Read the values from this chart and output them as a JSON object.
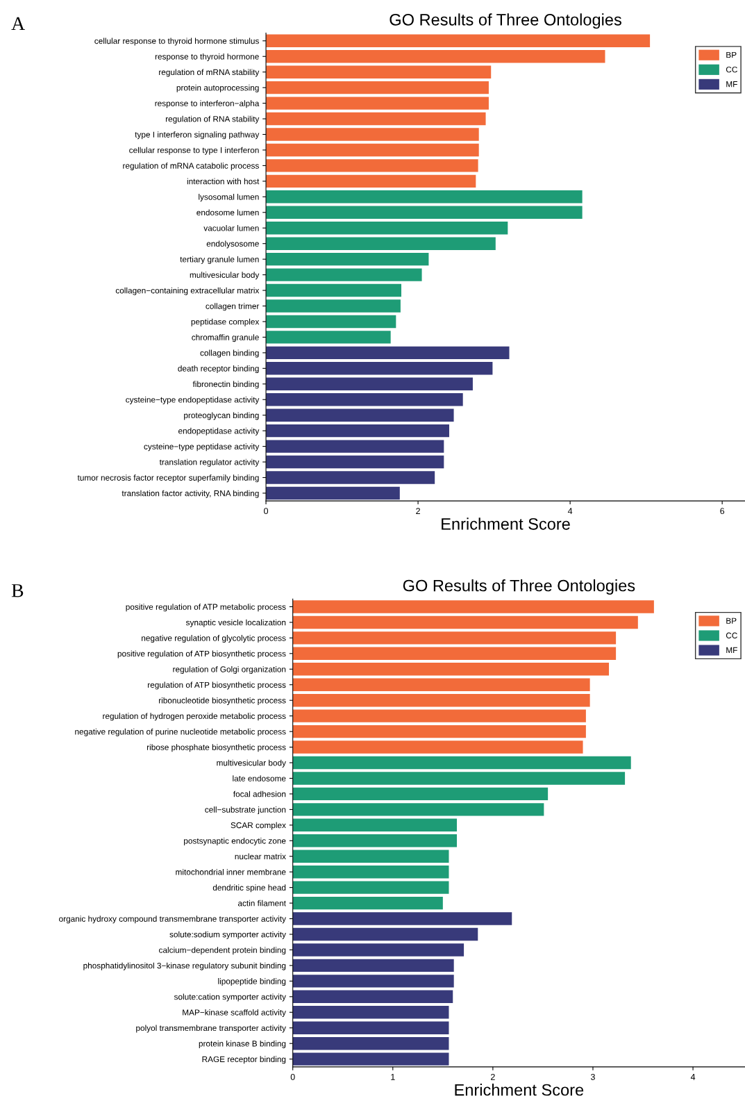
{
  "chart_data": [
    {
      "type": "bar",
      "orientation": "horizontal",
      "title": "GO Results of Three Ontologies",
      "xlabel": "Enrichment Score",
      "annotations": [
        "A"
      ],
      "legend": "top right",
      "grid": false,
      "categories": [
        "cellular response to thyroid hormone stimulus",
        "response to thyroid hormone",
        "regulation of mRNA stability",
        "protein autoprocessing",
        "response to interferon−alpha",
        "regulation of RNA stability",
        "type I interferon signaling pathway",
        "cellular response to type I interferon",
        "regulation of mRNA catabolic process",
        "interaction with host",
        "lysosomal lumen",
        "endosome lumen",
        "vacuolar lumen",
        "endolysosome",
        "tertiary granule lumen",
        "multivesicular body",
        "collagen−containing extracellular matrix",
        "collagen trimer",
        "peptidase complex",
        "chromaffin granule",
        "collagen binding",
        "death receptor binding",
        "fibronectin binding",
        "cysteine−type endopeptidase activity",
        "proteoglycan binding",
        "endopeptidase activity",
        "cysteine−type peptidase activity",
        "translation regulator activity",
        "tumor necrosis factor receptor superfamily binding",
        "translation factor activity, RNA binding"
      ],
      "series": [
        {
          "name": "BP",
          "color": "#f26b3a",
          "values": [
            5.05,
            4.46,
            2.96,
            2.93,
            2.93,
            2.89,
            2.8,
            2.8,
            2.79,
            2.76,
            null,
            null,
            null,
            null,
            null,
            null,
            null,
            null,
            null,
            null,
            null,
            null,
            null,
            null,
            null,
            null,
            null,
            null,
            null,
            null
          ]
        },
        {
          "name": "CC",
          "color": "#1e9c76",
          "values": [
            null,
            null,
            null,
            null,
            null,
            null,
            null,
            null,
            null,
            null,
            4.16,
            4.16,
            3.18,
            3.02,
            2.14,
            2.05,
            1.78,
            1.77,
            1.71,
            1.64,
            null,
            null,
            null,
            null,
            null,
            null,
            null,
            null,
            null,
            null
          ]
        },
        {
          "name": "MF",
          "color": "#383a7a",
          "values": [
            null,
            null,
            null,
            null,
            null,
            null,
            null,
            null,
            null,
            null,
            null,
            null,
            null,
            null,
            null,
            null,
            null,
            null,
            null,
            null,
            3.2,
            2.98,
            2.72,
            2.59,
            2.47,
            2.41,
            2.34,
            2.34,
            2.22,
            1.76
          ]
        }
      ],
      "xlim": [
        0,
        6.3
      ],
      "xticks": [
        0,
        2,
        4,
        6
      ]
    },
    {
      "type": "bar",
      "orientation": "horizontal",
      "title": "GO Results of Three Ontologies",
      "xlabel": "Enrichment Score",
      "annotations": [
        "B"
      ],
      "legend": "top right",
      "grid": false,
      "categories": [
        "positive regulation of ATP metabolic process",
        "synaptic vesicle localization",
        "negative regulation of glycolytic process",
        "positive regulation of ATP biosynthetic process",
        "regulation of Golgi organization",
        "regulation of ATP biosynthetic process",
        "ribonucleotide biosynthetic process",
        "regulation of hydrogen peroxide metabolic process",
        "negative regulation of purine nucleotide metabolic process",
        "ribose phosphate biosynthetic process",
        "multivesicular body",
        "late endosome",
        "focal adhesion",
        "cell−substrate junction",
        "SCAR complex",
        "postsynaptic endocytic zone",
        "nuclear matrix",
        "mitochondrial inner membrane",
        "dendritic spine head",
        "actin filament",
        "organic hydroxy compound transmembrane transporter activity",
        "solute:sodium symporter activity",
        "calcium−dependent protein binding",
        "phosphatidylinositol 3−kinase regulatory subunit binding",
        "lipopeptide binding",
        "solute:cation symporter activity",
        "MAP−kinase scaffold activity",
        "polyol transmembrane transporter activity",
        "protein kinase B binding",
        "RAGE receptor binding"
      ],
      "series": [
        {
          "name": "BP",
          "color": "#f26b3a",
          "values": [
            3.61,
            3.45,
            3.23,
            3.23,
            3.16,
            2.97,
            2.97,
            2.93,
            2.93,
            2.9,
            null,
            null,
            null,
            null,
            null,
            null,
            null,
            null,
            null,
            null,
            null,
            null,
            null,
            null,
            null,
            null,
            null,
            null,
            null,
            null
          ]
        },
        {
          "name": "CC",
          "color": "#1e9c76",
          "values": [
            null,
            null,
            null,
            null,
            null,
            null,
            null,
            null,
            null,
            null,
            3.38,
            3.32,
            2.55,
            2.51,
            1.64,
            1.64,
            1.56,
            1.56,
            1.56,
            1.5,
            null,
            null,
            null,
            null,
            null,
            null,
            null,
            null,
            null,
            null
          ]
        },
        {
          "name": "MF",
          "color": "#383a7a",
          "values": [
            null,
            null,
            null,
            null,
            null,
            null,
            null,
            null,
            null,
            null,
            null,
            null,
            null,
            null,
            null,
            null,
            null,
            null,
            null,
            null,
            2.19,
            1.85,
            1.71,
            1.61,
            1.61,
            1.6,
            1.56,
            1.56,
            1.56,
            1.56
          ]
        }
      ],
      "xlim": [
        0,
        4.52
      ],
      "xticks": [
        0,
        1,
        2,
        3,
        4
      ]
    }
  ]
}
